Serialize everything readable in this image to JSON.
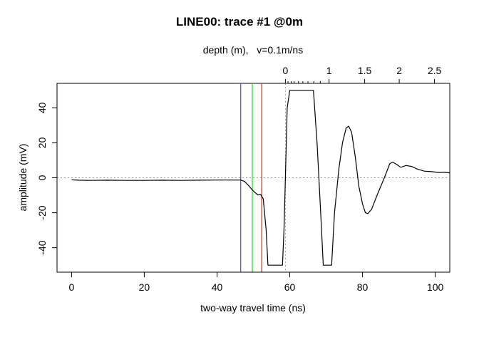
{
  "chart_data": {
    "type": "line",
    "title": "LINE00: trace #1  @0m",
    "xlabel": "two-way travel time (ns)",
    "ylabel": "amplitude (mV)",
    "top_axis_label": "depth (m),   v=0.1m/ns",
    "xlim": [
      -4,
      104
    ],
    "ylim": [
      -54,
      54
    ],
    "x_ticks": [
      0,
      20,
      40,
      60,
      80,
      100
    ],
    "y_ticks": [
      -40,
      -20,
      0,
      20,
      40
    ],
    "top_axis": {
      "ticks": [
        {
          "label": "0",
          "time": 58.8
        },
        {
          "label": "1",
          "time": 70.8
        },
        {
          "label": "1.5",
          "time": 80.6
        },
        {
          "label": "2",
          "time": 90.1
        },
        {
          "label": "2.5",
          "time": 99.8
        }
      ],
      "minor_ticks": [
        59.5,
        60.4,
        61.2,
        62.4,
        63.6,
        65.0,
        66.6,
        68.4
      ]
    },
    "zero_line": {
      "y": 0,
      "style": "dotted",
      "color": "#999999"
    },
    "time_zero_line": {
      "x": 58.8,
      "style": "dotted",
      "color": "#999999"
    },
    "markers": [
      {
        "x": 46.5,
        "color": "#5555dd"
      },
      {
        "x": 49.7,
        "color": "#22dd22"
      },
      {
        "x": 52.3,
        "color": "#ee2222"
      }
    ],
    "series": [
      {
        "color": "#000000",
        "points": [
          [
            0,
            -1.2
          ],
          [
            2,
            -1.4
          ],
          [
            5,
            -1.5
          ],
          [
            10,
            -1.4
          ],
          [
            15,
            -1.5
          ],
          [
            20,
            -1.5
          ],
          [
            25,
            -1.4
          ],
          [
            30,
            -1.5
          ],
          [
            35,
            -1.4
          ],
          [
            40,
            -1.3
          ],
          [
            45,
            -1.3
          ],
          [
            46.5,
            -1.3
          ],
          [
            47.5,
            -2
          ],
          [
            48.5,
            -4
          ],
          [
            49.5,
            -6.5
          ],
          [
            50.5,
            -8.5
          ],
          [
            51.2,
            -9.8
          ],
          [
            52,
            -9.6
          ],
          [
            52.7,
            -12
          ],
          [
            53.5,
            -30
          ],
          [
            54,
            -50
          ],
          [
            58,
            -50
          ],
          [
            58.4,
            -30
          ],
          [
            58.8,
            0
          ],
          [
            59.3,
            40
          ],
          [
            60,
            50
          ],
          [
            66.5,
            50
          ],
          [
            67.5,
            20
          ],
          [
            68.5,
            -20
          ],
          [
            69.2,
            -50
          ],
          [
            71.5,
            -50
          ],
          [
            72.3,
            -20
          ],
          [
            73.5,
            5
          ],
          [
            74.5,
            20
          ],
          [
            75.5,
            28.5
          ],
          [
            76.2,
            29.5
          ],
          [
            77,
            26
          ],
          [
            78,
            12
          ],
          [
            79,
            -5
          ],
          [
            80,
            -15
          ],
          [
            80.8,
            -20
          ],
          [
            81.5,
            -20.5
          ],
          [
            82.5,
            -18
          ],
          [
            84,
            -10
          ],
          [
            86,
            0
          ],
          [
            87.5,
            8
          ],
          [
            88.3,
            9
          ],
          [
            89.5,
            7.5
          ],
          [
            90.5,
            6
          ],
          [
            92,
            7
          ],
          [
            93.5,
            6.5
          ],
          [
            95,
            5
          ],
          [
            97,
            3.8
          ],
          [
            99,
            3.5
          ],
          [
            101,
            3
          ],
          [
            102.5,
            3.2
          ],
          [
            104,
            2.8
          ]
        ]
      }
    ]
  }
}
